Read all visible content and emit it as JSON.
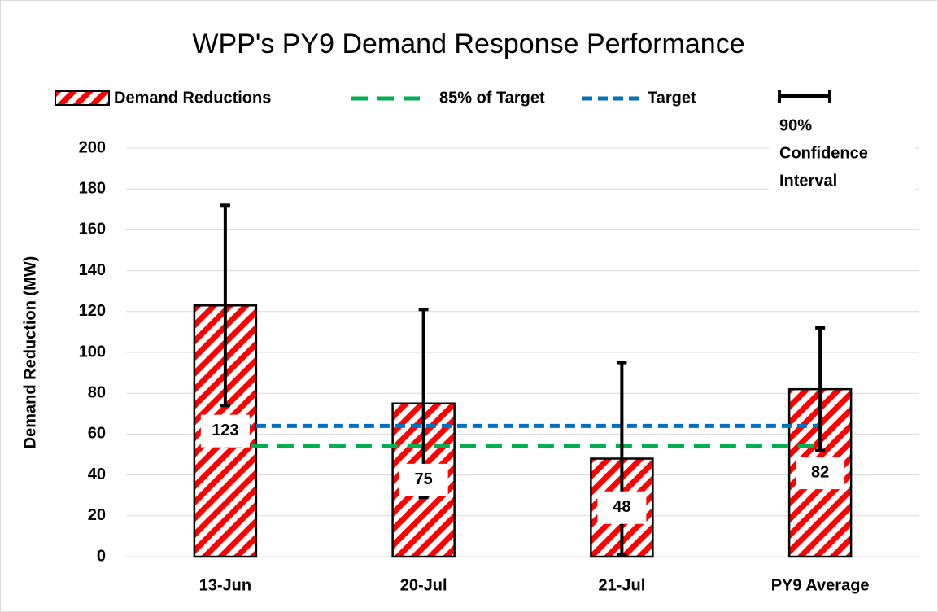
{
  "chart_data": {
    "type": "bar",
    "title": "WPP's PY9 Demand Response Performance",
    "y_label": "Demand Reduction (MW)",
    "categories": [
      "13-Jun",
      "20-Jul",
      "21-Jul",
      "PY9 Average"
    ],
    "series": [
      {
        "name": "Demand Reductions",
        "color": "#ff0000",
        "values": [
          123,
          75,
          48,
          82
        ],
        "errors": [
          49,
          46,
          47,
          30
        ]
      }
    ],
    "reference_lines": [
      {
        "name": "85% of Target",
        "color": "#00b050",
        "value": 54.4
      },
      {
        "name": "Target",
        "color": "#0070c0",
        "value": 64
      }
    ],
    "error_legend_lines": [
      "90%",
      "Confidence",
      "Interval"
    ],
    "ylim": [
      0,
      200
    ],
    "yticks": [
      0,
      20,
      40,
      60,
      80,
      100,
      120,
      140,
      160,
      180,
      200
    ],
    "grid": true
  }
}
